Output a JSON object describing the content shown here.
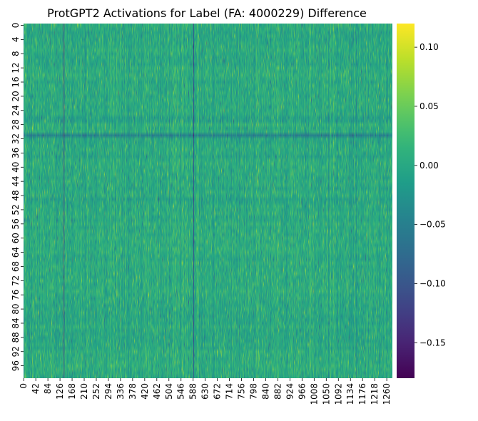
{
  "chart_data": {
    "type": "heatmap",
    "title": "ProtGPT2 Activations for Label (FA: 4000229) Difference",
    "xlabel": "",
    "ylabel": "",
    "n_rows": 100,
    "n_cols": 1280,
    "y_tick_labels": [
      "0",
      "4",
      "8",
      "12",
      "16",
      "20",
      "24",
      "28",
      "32",
      "36",
      "40",
      "44",
      "48",
      "52",
      "56",
      "60",
      "64",
      "68",
      "72",
      "76",
      "80",
      "84",
      "88",
      "92",
      "96"
    ],
    "x_tick_labels": [
      "0",
      "42",
      "84",
      "126",
      "168",
      "210",
      "252",
      "294",
      "336",
      "378",
      "420",
      "462",
      "504",
      "546",
      "588",
      "630",
      "672",
      "714",
      "756",
      "798",
      "840",
      "882",
      "924",
      "966",
      "1008",
      "1050",
      "1092",
      "1134",
      "1176",
      "1218",
      "1260"
    ],
    "colorbar": {
      "colormap": "viridis",
      "vmin": -0.18,
      "vmax": 0.12,
      "tick_values": [
        -0.15,
        -0.1,
        -0.05,
        0.0,
        0.05,
        0.1
      ],
      "tick_labels": [
        "−0.15",
        "−0.10",
        "−0.05",
        "0.00",
        "0.05",
        "0.10"
      ]
    },
    "dark_columns": [
      140,
      590
    ],
    "dark_rows": [
      31
    ]
  }
}
